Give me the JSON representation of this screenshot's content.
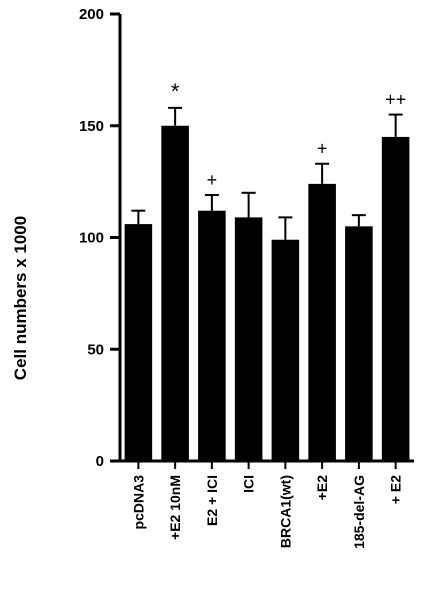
{
  "chart_data": {
    "type": "bar",
    "ylabel": "Cell numbers x 1000",
    "ylim": [
      0,
      200
    ],
    "yticks": [
      0,
      50,
      100,
      150,
      200
    ],
    "grid": false,
    "categories": [
      "pcDNA3",
      "+E2 10nM",
      "E2 + ICI",
      "ICI",
      "BRCA1(wt)",
      "+E2",
      "185-del-AG",
      "+ E2"
    ],
    "values": [
      106,
      150,
      112,
      109,
      99,
      124,
      105,
      145
    ],
    "errors": [
      6,
      8,
      7,
      11,
      10,
      9,
      5,
      10
    ],
    "annotations": [
      "",
      "*",
      "+",
      "",
      "",
      "+",
      "",
      "++"
    ],
    "bar_color": "#000000"
  }
}
